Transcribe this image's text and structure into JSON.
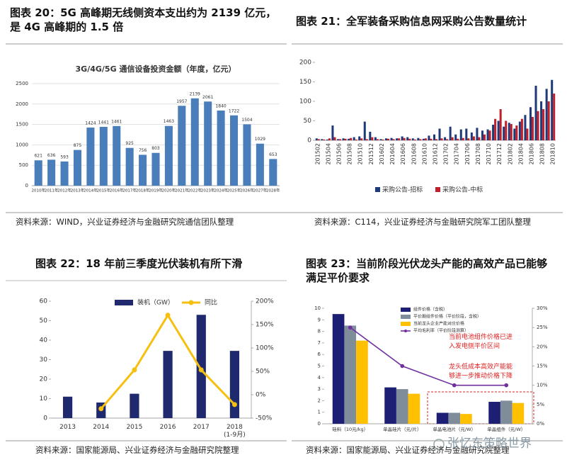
{
  "chart_data": [
    {
      "type": "bar",
      "title": "图表 20：5G 高峰期无线侧资本支出约为 2139 亿元，是 4G 高峰期的 1.5 倍",
      "subtitle": "3G/4G/5G 通信设备投资金额（年度，亿元）",
      "categories": [
        "2010年",
        "2011年",
        "2012年",
        "2013年",
        "2014年",
        "2015年",
        "2016年",
        "2017年",
        "2018年",
        "2019年",
        "2020年",
        "2021年",
        "2022年",
        "2023年",
        "2024年",
        "2025年",
        "2026年",
        "2027年",
        "2028年"
      ],
      "values": [
        621,
        636,
        593,
        875,
        1424,
        1441,
        1461,
        925,
        756,
        803,
        1463,
        1957,
        2139,
        2061,
        1840,
        1722,
        1504,
        1029,
        653
      ],
      "color": "#4a7ebb",
      "ylim": [
        0,
        2500
      ],
      "yticks": [
        0,
        500,
        1000,
        1500,
        2000,
        2500
      ],
      "grid": true,
      "source": "资料来源：WIND，兴业证券经济与金融研究院通信团队整理"
    },
    {
      "type": "grouped_bar",
      "title": "图表 21：全军装备采购信息网采购公告数量统计",
      "categories": [
        "201502",
        null,
        "201504",
        null,
        "201506",
        null,
        "201508",
        null,
        "201510",
        null,
        "201512",
        null,
        "201602",
        null,
        "201604",
        null,
        "201606",
        null,
        "201608",
        null,
        "201610",
        null,
        "201612",
        null,
        "201702",
        null,
        "201704",
        null,
        "201706",
        null,
        "201708",
        null,
        "201710",
        null,
        "201712",
        null,
        "201802",
        null,
        "201804",
        null,
        "201806",
        null,
        "201808",
        null,
        "201810"
      ],
      "series": [
        {
          "name": "采购公告-招标",
          "color": "#1f3a7a",
          "values": [
            5,
            3,
            2,
            38,
            3,
            5,
            4,
            8,
            10,
            48,
            22,
            8,
            3,
            5,
            6,
            5,
            10,
            8,
            5,
            6,
            4,
            12,
            15,
            30,
            8,
            35,
            15,
            28,
            30,
            20,
            32,
            25,
            28,
            40,
            50,
            35,
            45,
            30,
            48,
            65,
            85,
            140,
            100,
            132,
            155
          ]
        },
        {
          "name": "采购公告-中标",
          "color": "#c0202b",
          "values": [
            3,
            2,
            5,
            8,
            3,
            4,
            6,
            2,
            5,
            3,
            8,
            3,
            2,
            4,
            3,
            5,
            6,
            4,
            2,
            3,
            5,
            4,
            3,
            5,
            3,
            8,
            4,
            6,
            5,
            10,
            8,
            15,
            25,
            55,
            80,
            50,
            42,
            38,
            55,
            30,
            60,
            75,
            80,
            100,
            120
          ]
        }
      ],
      "ylim": [
        0,
        200
      ],
      "yticks": [
        0,
        50,
        100,
        150,
        200
      ],
      "grid": false,
      "legend": "bottom",
      "source": "资料来源：C114，兴业证券经济与金融研究院军工团队整理"
    },
    {
      "type": "bar_line",
      "title": "图表 22：18 年前三季度光伏装机有所下滑",
      "categories": [
        "2013",
        "2014",
        "2015",
        "2016",
        "2017",
        "2018\n(1-9月)"
      ],
      "series": [
        {
          "name": "装机（GW）",
          "color": "#1f2a6e",
          "values": [
            11,
            8,
            12.5,
            34.5,
            53,
            34.5
          ]
        },
        {
          "name": "同比",
          "color": "#f5c010",
          "axis": "y2",
          "values": [
            null,
            -30,
            53,
            170,
            53,
            -21
          ]
        }
      ],
      "ylim": [
        0,
        60
      ],
      "yticks": [
        0,
        10,
        20,
        30,
        40,
        50,
        60
      ],
      "y2lim": [
        -50,
        200
      ],
      "y2ticks": [
        {
          "value": -50,
          "label": "-50%"
        },
        {
          "value": 0,
          "label": "0%"
        },
        {
          "value": 50,
          "label": "50%"
        },
        {
          "value": 100,
          "label": "100%"
        },
        {
          "value": 150,
          "label": "150%"
        },
        {
          "value": 200,
          "label": "200%"
        }
      ],
      "grid": false,
      "legend": "top",
      "source": "资料来源：国家能源局、兴业证券经济与金融研究院整理"
    },
    {
      "type": "grouped_bar_line",
      "title": "图表 23：当前阶段光伏龙头产能的高效产品已能够满足平价要求",
      "categories": [
        "硅料（10元/kg）",
        "单晶硅片（元/片）",
        "单晶电池片（元/W）",
        "单晶组件（元/W）"
      ],
      "series": [
        {
          "name": "组件价格（含税）",
          "color": "#1c1f73",
          "values": [
            9.5,
            3.15,
            0.95,
            1.9
          ]
        },
        {
          "name": "平价期组件价格（平价阶段，含税）",
          "color": "#7f8c99",
          "values": [
            8.5,
            3.0,
            0.95,
            2.0
          ]
        },
        {
          "name": "当前龙头企业产能对应价格",
          "color": "#ffc000",
          "values": [
            7.2,
            2.6,
            0.85,
            1.8
          ]
        },
        {
          "name": "平均毛利率（平价阶段测算）",
          "color": "#7030a0",
          "axis": "y2",
          "values": [
            25,
            15,
            10,
            10
          ]
        }
      ],
      "ylim": [
        0,
        10
      ],
      "yticks": [
        0,
        1,
        2,
        3,
        4,
        5,
        6,
        7,
        8,
        9,
        10
      ],
      "y2lim": [
        0,
        30
      ],
      "y2ticks": [
        {
          "value": 0,
          "label": "0%"
        },
        {
          "value": 5,
          "label": "5%"
        },
        {
          "value": 10,
          "label": "10%"
        },
        {
          "value": 15,
          "label": "15%"
        },
        {
          "value": 20,
          "label": "20%"
        },
        {
          "value": 25,
          "label": "25%"
        },
        {
          "value": 30,
          "label": "30%"
        }
      ],
      "grid": false,
      "legend": "top-left",
      "annotations": [
        "当前电池组件价格已进入发电侧平价区间",
        "龙头低成本高效产能能够进一步推动价格下降"
      ],
      "source": "资料来源：国家能源局、兴业证券经济与金融研究院整理"
    }
  ],
  "watermark": "张忆东策略世界"
}
